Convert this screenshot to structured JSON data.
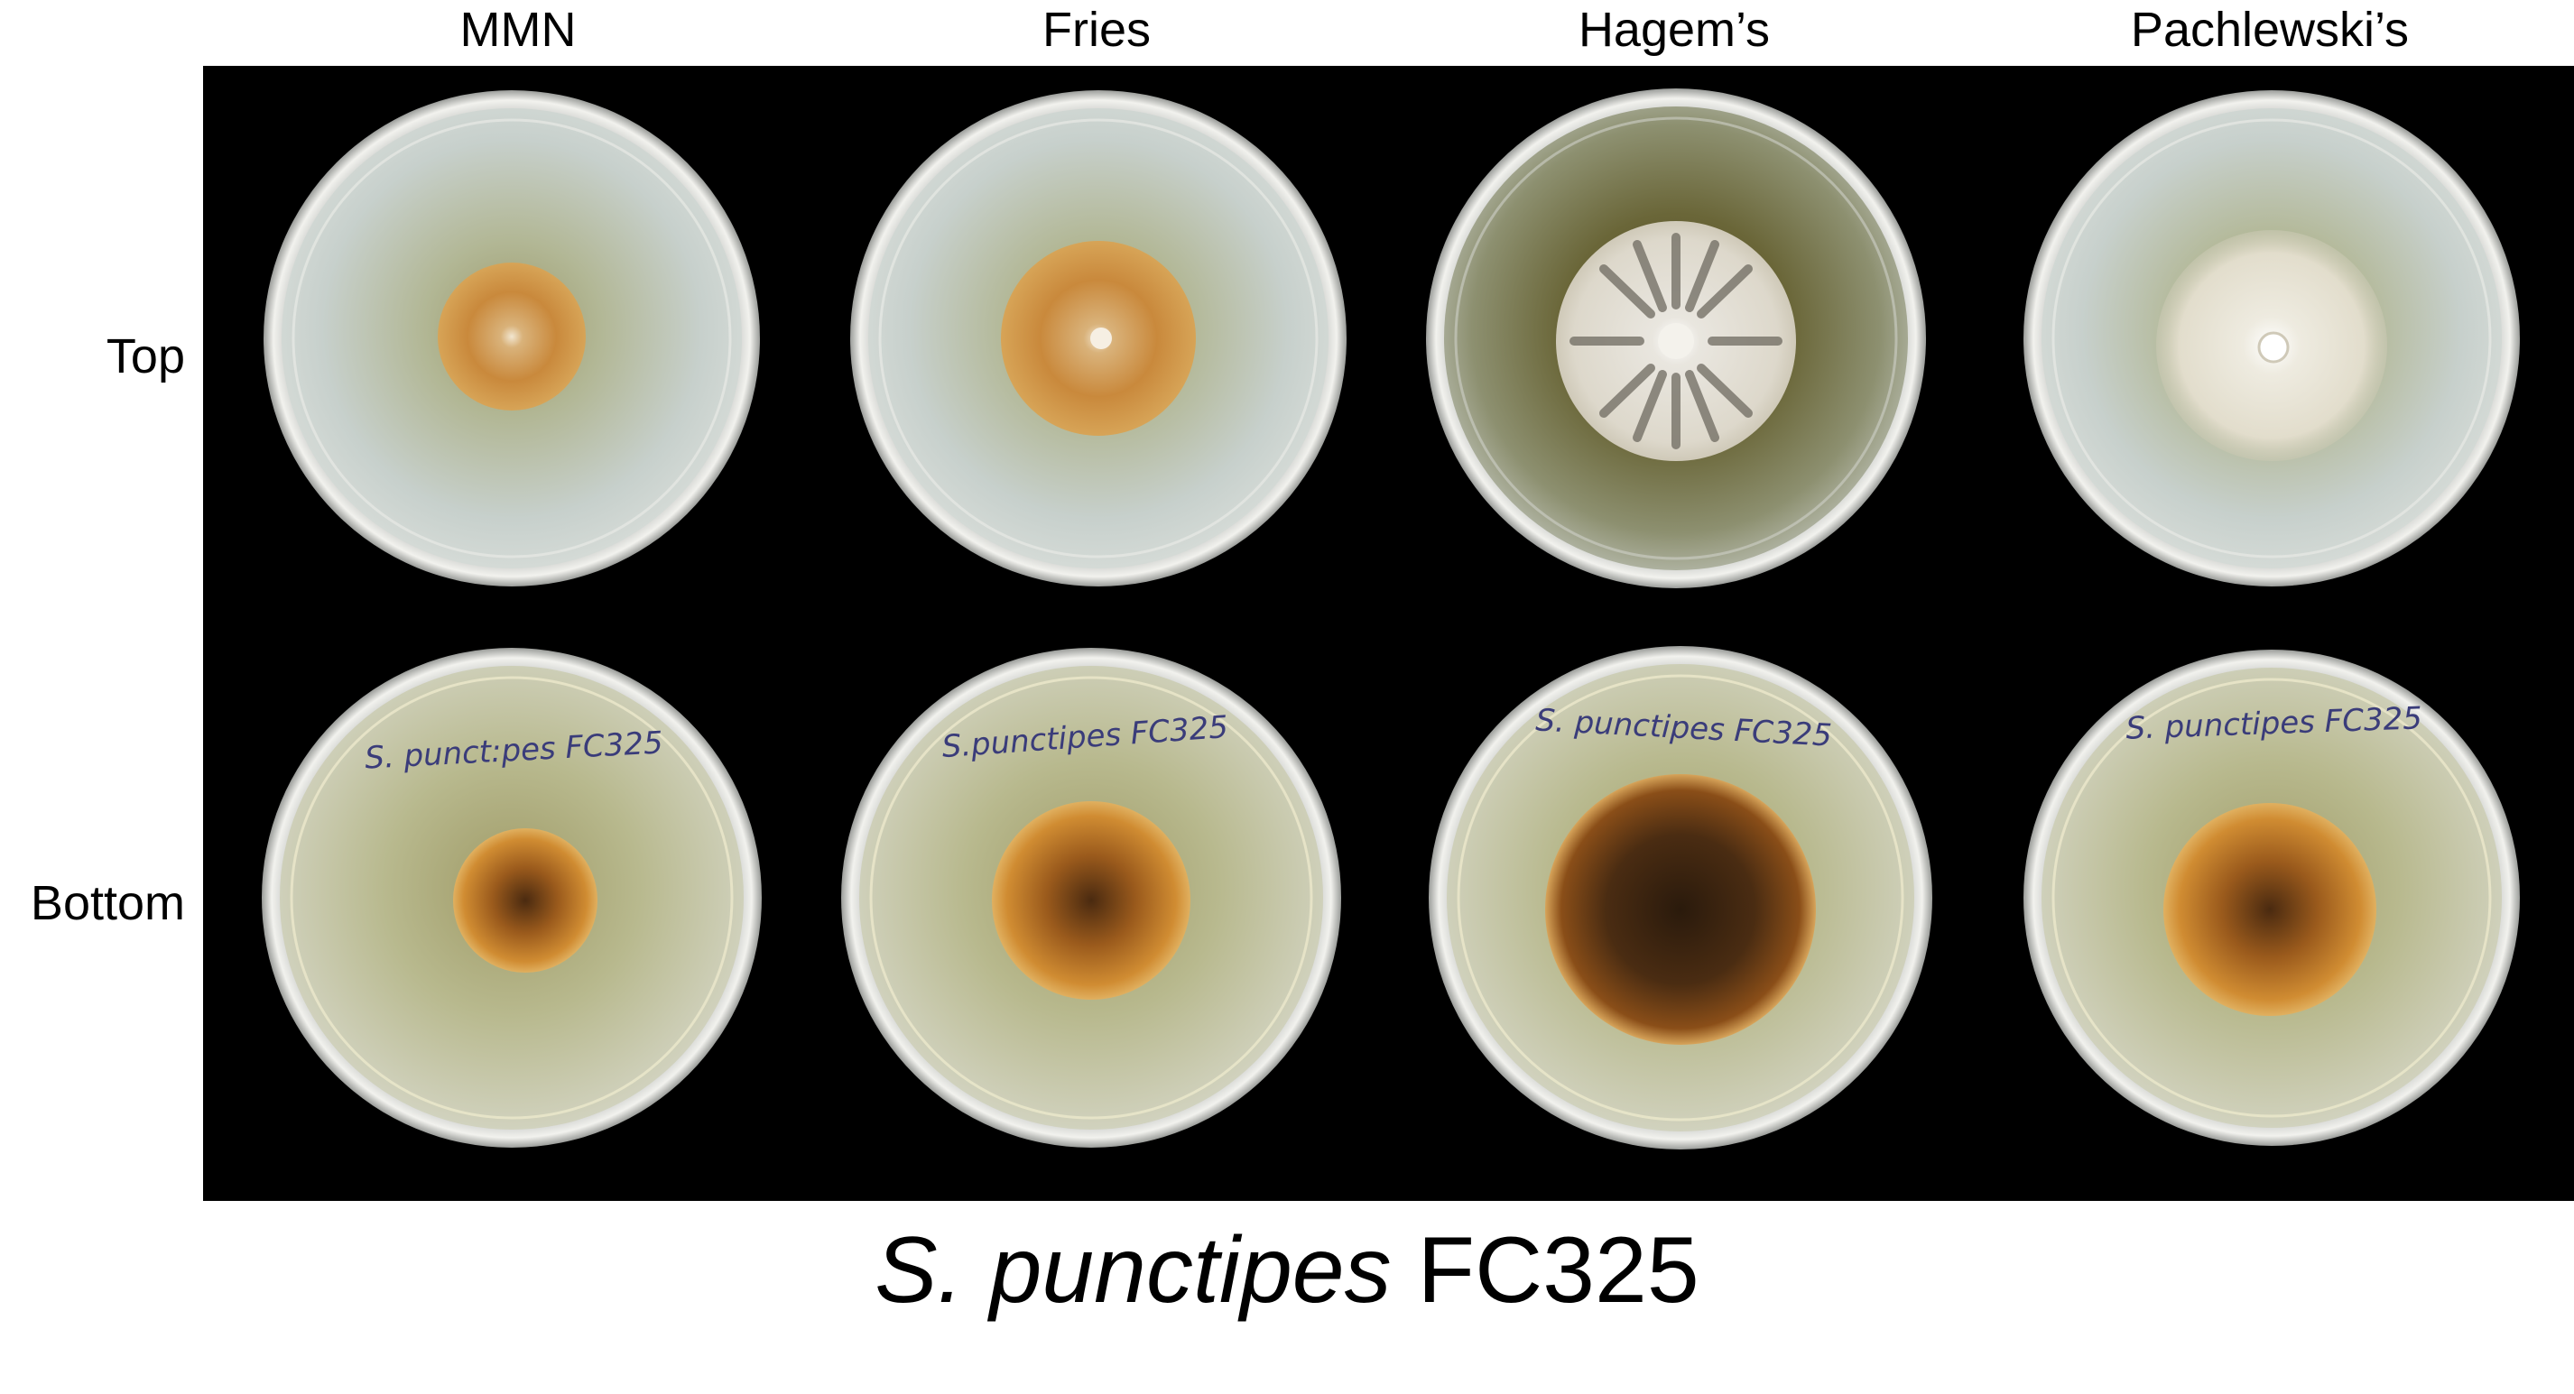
{
  "columns": [
    "MMN",
    "Fries",
    "Hagem’s",
    "Pachlewski’s"
  ],
  "rows": [
    "Top",
    "Bottom"
  ],
  "plate_writing": [
    "S. punct:pes FC325",
    "S.punctipes FC325",
    "S. punctipes FC325",
    "S. punctipes FC325"
  ],
  "caption": {
    "species": "S. punctipes",
    "strain": "FC325"
  },
  "colors": {
    "panel_background": "#000000",
    "agar_top_light": "#c7d0cc",
    "agar_top_hagem": "#6f6b3c",
    "agar_bottom": "#c4c6a6",
    "colony_top_orange": "#c9893c",
    "colony_top_white": "#ece7dd",
    "colony_bottom_brown": "#6a3a14",
    "ink_blue": "#3a3c7a"
  }
}
